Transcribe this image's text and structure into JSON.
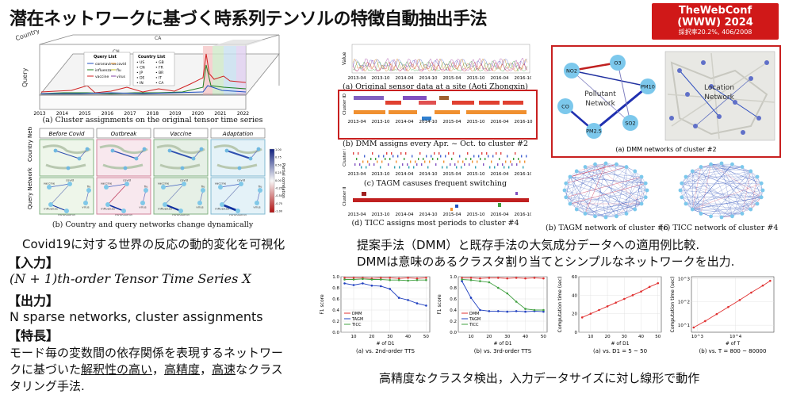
{
  "title": "潜在ネットワークに基づく時系列テンソルの特徴自動抽出手法",
  "badge": {
    "line1": "TheWebConf",
    "line2": "(WWW) 2024",
    "line3": "採択率20.2%, 406/2008"
  },
  "left": {
    "cube": {
      "axis_country": "Country",
      "axis_query": "Query",
      "country_labels": [
        "CA",
        "CN",
        "JP"
      ],
      "years": [
        "2013",
        "2014",
        "2015",
        "2016",
        "2017",
        "2018",
        "2019",
        "2020",
        "2021",
        "2022"
      ],
      "legend_query_title": "Query List",
      "legend_queries": [
        "coronavirus",
        "influenza",
        "vaccine",
        "covid",
        "flu",
        "virus"
      ],
      "legend_country_title": "Country List",
      "legend_countries": [
        "US",
        "GB",
        "CN",
        "FR",
        "JP",
        "BR",
        "DE",
        "IT",
        "IN",
        "CA"
      ]
    },
    "caption_a": "(a) Cluster assignments on the original tensor time series",
    "phases": [
      "Before Covid",
      "Outbreak",
      "Vaccine",
      "Adaptation"
    ],
    "row_country": "Country Network",
    "row_query": "Query Network",
    "colorbar_label": "Partial correlation",
    "colorbar_ticks": [
      "1.00",
      "0.75",
      "0.50",
      "0.25",
      "0.00",
      "-0.25",
      "-0.50",
      "-0.75",
      "-1.00"
    ],
    "node_labels": [
      "vaccine",
      "covid",
      "flu",
      "virus",
      "influenza",
      "coronavirus"
    ],
    "caption_b": "(b) Country and query networks change dynamically",
    "summary": "Covid19に対する世界の反応の動的変化を可視化",
    "input_head": "【入力】",
    "input_text": "(N + 1)th-order Tensor Time Series X",
    "output_head": "【出力】",
    "output_text": "N sparse networks, cluster assignments",
    "feature_head": "【特長】",
    "feature_line1": "モード毎の変数間の依存関係を表現するネットワー",
    "feature_line2_pre": "クに基づいた",
    "feature_line2_u1": "解釈性の高い",
    "feature_line2_mid": "，",
    "feature_line2_u2": "高精度",
    "feature_line2_mid2": "，",
    "feature_line2_u3": "高速",
    "feature_line2_post": "なクラス",
    "feature_line3": "タリング手法."
  },
  "middle": {
    "ylabel_value": "Value",
    "ylabel_cluster": "Cluster ID",
    "dates": [
      "2013-04",
      "2013-10",
      "2014-04",
      "2014-10",
      "2015-04",
      "2015-10",
      "2016-04",
      "2016-10"
    ],
    "caption_a": "(a) Original sensor data at a site (Aoti Zhongxin)",
    "caption_b": "(b) DMM assigns every Apr. ~ Oct. to cluster #2",
    "caption_c": "(c) TAGM casuses frequent switching",
    "caption_d": "(d) TICC assigns most periods to cluster #4"
  },
  "right": {
    "pollutant_title": "Pollutant Network",
    "location_title": "Location Network",
    "pollutants": [
      "NO2",
      "O3",
      "PM10",
      "CO",
      "PM2.5",
      "SO2"
    ],
    "caption_a": "(a) DMM networks of cluster #2",
    "caption_b": "(b) TAGM network of cluster #6",
    "caption_c": "(c) TICC network of cluster #4"
  },
  "comparison": {
    "line1": "提案手法（DMM）と既存手法の大気成分データへの適用例比較.",
    "line2": "DMMは意味のあるクラスタ割り当てとシンプルなネットワークを出力."
  },
  "bottom_summary": "高精度なクラスタ検出，入力データサイズに対し線形で動作",
  "chart_data": [
    {
      "type": "line",
      "title": "",
      "caption": "(a) vs. 2nd-order TTS",
      "xlabel": "# of D1",
      "ylabel": "F1 score",
      "x": [
        5,
        10,
        15,
        20,
        25,
        30,
        35,
        40,
        45,
        50
      ],
      "ylim": [
        0.0,
        1.0
      ],
      "yticks": [
        "0.0",
        "0.2",
        "0.4",
        "0.6",
        "0.8",
        "1.0"
      ],
      "xticks": [
        "10",
        "20",
        "30",
        "40",
        "50"
      ],
      "series": [
        {
          "name": "DMM",
          "color": "#e03030",
          "values": [
            0.98,
            0.98,
            0.98,
            0.97,
            0.98,
            0.98,
            0.97,
            0.98,
            0.97,
            0.98
          ]
        },
        {
          "name": "TAGM",
          "color": "#2040c0",
          "values": [
            0.88,
            0.85,
            0.88,
            0.84,
            0.83,
            0.78,
            0.62,
            0.58,
            0.52,
            0.48
          ]
        },
        {
          "name": "TICC",
          "color": "#40a040",
          "values": [
            0.95,
            0.95,
            0.96,
            0.95,
            0.95,
            0.94,
            0.94,
            0.93,
            0.94,
            0.94
          ]
        }
      ]
    },
    {
      "type": "line",
      "title": "",
      "caption": "(b) vs. 3rd-order TTS",
      "xlabel": "# of D1",
      "ylabel": "F1 score",
      "x": [
        5,
        10,
        15,
        20,
        25,
        30,
        35,
        40,
        45,
        50
      ],
      "ylim": [
        0.0,
        1.0
      ],
      "yticks": [
        "0.0",
        "0.2",
        "0.4",
        "0.6",
        "0.8",
        "1.0"
      ],
      "xticks": [
        "10",
        "20",
        "30",
        "40",
        "50"
      ],
      "series": [
        {
          "name": "DMM",
          "color": "#e03030",
          "values": [
            0.98,
            0.98,
            0.97,
            0.98,
            0.98,
            0.97,
            0.98,
            0.97,
            0.98,
            0.97
          ]
        },
        {
          "name": "TAGM",
          "color": "#2040c0",
          "values": [
            0.92,
            0.62,
            0.4,
            0.38,
            0.38,
            0.37,
            0.38,
            0.37,
            0.38,
            0.37
          ]
        },
        {
          "name": "TICC",
          "color": "#40a040",
          "values": [
            0.95,
            0.94,
            0.92,
            0.9,
            0.8,
            0.7,
            0.55,
            0.42,
            0.4,
            0.4
          ]
        }
      ]
    },
    {
      "type": "line",
      "title": "",
      "caption": "(a) vs. D1 = 5 ~ 50",
      "xlabel": "# of D1",
      "ylabel": "Computation time (sec)",
      "x": [
        5,
        10,
        15,
        20,
        25,
        30,
        35,
        40,
        45,
        50
      ],
      "ylim": [
        0,
        60
      ],
      "yticks": [
        "0",
        "20",
        "40",
        "60"
      ],
      "xticks": [
        "10",
        "20",
        "30",
        "40",
        "50"
      ],
      "series": [
        {
          "name": "DMM",
          "color": "#e03030",
          "values": [
            16,
            20,
            24,
            28,
            32,
            36,
            40,
            44,
            49,
            53
          ]
        }
      ]
    },
    {
      "type": "line",
      "title": "",
      "caption": "(b) vs. T = 800 ~ 80000",
      "xlabel": "# of T",
      "ylabel": "Computation time (sec)",
      "scale": "log-log",
      "x": [
        800,
        1600,
        3200,
        6400,
        12800,
        25600,
        51200,
        80000
      ],
      "xticks": [
        "10^3",
        "10^4"
      ],
      "yticks": [
        "10^1",
        "10^2",
        "10^3"
      ],
      "series": [
        {
          "name": "DMM",
          "color": "#e03030",
          "values": [
            8,
            15,
            30,
            60,
            120,
            250,
            500,
            800
          ]
        }
      ]
    }
  ]
}
